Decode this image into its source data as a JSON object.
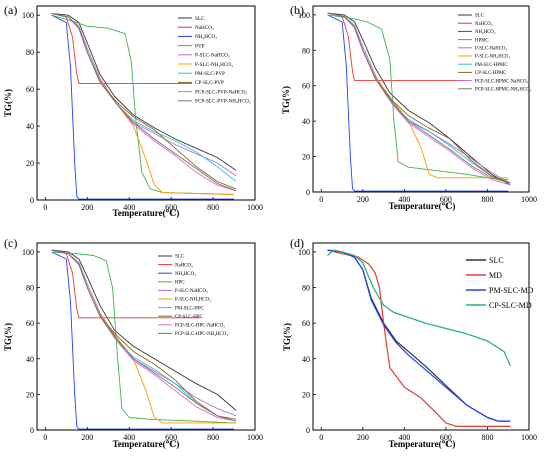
{
  "chart_data": [
    {
      "panel": "(a)",
      "type": "line",
      "xlabel": "Temperature(℃)",
      "ylabel": "TG(%)",
      "xlim": [
        -40,
        1000
      ],
      "ylim": [
        0,
        105
      ],
      "xticks": [
        0,
        200,
        400,
        600,
        800,
        1000
      ],
      "yticks": [
        0,
        20,
        40,
        60,
        80,
        100
      ],
      "legend": "top-right",
      "series": [
        {
          "name": "SLC",
          "color": "#333333",
          "x": [
            30,
            110,
            160,
            200,
            260,
            330,
            420,
            520,
            620,
            720,
            820,
            910
          ],
          "y": [
            101,
            100,
            96,
            85,
            68,
            56,
            46,
            39,
            33,
            28,
            23,
            16
          ]
        },
        {
          "name": "NaHCO₃",
          "color": "#e53935",
          "x": [
            30,
            100,
            130,
            150,
            160,
            700
          ],
          "y": [
            101,
            99,
            88,
            68,
            63,
            63
          ]
        },
        {
          "name": "NH₄HCO₃",
          "color": "#1e40ff",
          "x": [
            30,
            100,
            120,
            140,
            150,
            160,
            900
          ],
          "y": [
            100,
            96,
            72,
            20,
            2,
            0.5,
            0.5
          ]
        },
        {
          "name": "PVP",
          "color": "#3cb54a",
          "x": [
            30,
            150,
            200,
            300,
            380,
            410,
            430,
            460,
            500,
            560,
            900
          ],
          "y": [
            100,
            96,
            94,
            93,
            90,
            75,
            45,
            15,
            6,
            4,
            3
          ]
        },
        {
          "name": "P-SLC-NaHCO₃",
          "color": "#b36fd6",
          "x": [
            30,
            110,
            160,
            200,
            260,
            340,
            420,
            520,
            620,
            720,
            820,
            910
          ],
          "y": [
            101,
            99,
            94,
            82,
            66,
            52,
            42,
            36,
            30,
            25,
            20,
            13
          ]
        },
        {
          "name": "P-SLC-NH₄HCO₃",
          "color": "#ff9800",
          "x": [
            30,
            110,
            160,
            200,
            260,
            340,
            420,
            480,
            520,
            560,
            900
          ],
          "y": [
            101,
            99,
            93,
            80,
            65,
            52,
            40,
            22,
            8,
            4,
            3
          ]
        },
        {
          "name": "PM-SLC-PVP",
          "color": "#26c6da",
          "x": [
            30,
            110,
            160,
            200,
            260,
            340,
            420,
            520,
            620,
            720,
            820,
            910
          ],
          "y": [
            101,
            99,
            93,
            80,
            64,
            52,
            43,
            37,
            32,
            26,
            18,
            10
          ]
        },
        {
          "name": "CP-SLC-PVP",
          "color": "#8b6914",
          "x": [
            30,
            110,
            160,
            200,
            260,
            340,
            420,
            520,
            620,
            720,
            820,
            910
          ],
          "y": [
            101,
            99,
            93,
            80,
            64,
            53,
            45,
            38,
            28,
            18,
            10,
            6
          ]
        },
        {
          "name": "PCP-SLC-PVP-NaHCO₃",
          "color": "#d96bc9",
          "x": [
            30,
            110,
            160,
            200,
            260,
            340,
            420,
            520,
            620,
            720,
            820,
            910
          ],
          "y": [
            101,
            99,
            93,
            80,
            64,
            52,
            41,
            32,
            24,
            15,
            8,
            5
          ]
        },
        {
          "name": "PCP-SLC-PVP-NH₄HCO₃",
          "color": "#757575",
          "x": [
            30,
            110,
            160,
            200,
            260,
            340,
            420,
            520,
            620,
            720,
            820,
            910
          ],
          "y": [
            101,
            99,
            93,
            80,
            64,
            52,
            42,
            33,
            25,
            17,
            9,
            5
          ]
        }
      ]
    },
    {
      "panel": "(b)",
      "type": "line",
      "xlabel": "Temperature(℃)",
      "ylabel": "TG(%)",
      "xlim": [
        -40,
        1000
      ],
      "ylim": [
        0,
        105
      ],
      "xticks": [
        0,
        200,
        400,
        600,
        800,
        1000
      ],
      "yticks": [
        0,
        20,
        40,
        60,
        80,
        100
      ],
      "legend": "top-right",
      "series": [
        {
          "name": "SLC",
          "color": "#333333",
          "x": [
            30,
            110,
            160,
            200,
            260,
            330,
            420,
            520,
            620,
            720,
            820,
            910
          ],
          "y": [
            101,
            100,
            96,
            86,
            70,
            56,
            46,
            39,
            30,
            20,
            10,
            4
          ]
        },
        {
          "name": "NaHCO₃",
          "color": "#e53935",
          "x": [
            30,
            100,
            130,
            150,
            160,
            700
          ],
          "y": [
            101,
            99,
            88,
            68,
            63,
            63
          ]
        },
        {
          "name": "NH₄HCO₃",
          "color": "#1e40ff",
          "x": [
            30,
            100,
            120,
            140,
            150,
            160,
            900
          ],
          "y": [
            100,
            96,
            72,
            20,
            2,
            0.5,
            0.5
          ]
        },
        {
          "name": "HPMC",
          "color": "#3cb54a",
          "x": [
            30,
            150,
            220,
            290,
            330,
            350,
            370,
            420,
            700,
            800,
            900
          ],
          "y": [
            100,
            98,
            96,
            92,
            75,
            40,
            17,
            14,
            10,
            8,
            7
          ]
        },
        {
          "name": "P-SLC-NaHCO₃",
          "color": "#b36fd6",
          "x": [
            30,
            110,
            160,
            200,
            260,
            340,
            420,
            520,
            620,
            720,
            820,
            910
          ],
          "y": [
            101,
            99,
            94,
            82,
            66,
            50,
            40,
            34,
            27,
            19,
            11,
            5
          ]
        },
        {
          "name": "P-SLC-NH₄HCO₃",
          "color": "#ff9800",
          "x": [
            30,
            110,
            160,
            200,
            260,
            340,
            420,
            480,
            520,
            560,
            900
          ],
          "y": [
            101,
            99,
            93,
            80,
            65,
            52,
            40,
            25,
            10,
            8,
            8
          ]
        },
        {
          "name": "PM-SLC-HPMC",
          "color": "#26c6da",
          "x": [
            30,
            110,
            160,
            200,
            260,
            340,
            420,
            520,
            620,
            720,
            820,
            910
          ],
          "y": [
            101,
            99,
            93,
            80,
            64,
            50,
            41,
            34,
            26,
            17,
            9,
            5
          ]
        },
        {
          "name": "CP-SLC-HPMC",
          "color": "#8b6914",
          "x": [
            30,
            110,
            160,
            200,
            260,
            340,
            420,
            520,
            620,
            720,
            820,
            910
          ],
          "y": [
            101,
            99,
            93,
            80,
            64,
            52,
            43,
            36,
            30,
            18,
            9,
            5
          ]
        },
        {
          "name": "PCP-SLC-HPMC-NaHCO₃",
          "color": "#d96bc9",
          "x": [
            30,
            110,
            160,
            200,
            260,
            340,
            420,
            520,
            620,
            720,
            820,
            910
          ],
          "y": [
            101,
            99,
            93,
            80,
            64,
            50,
            39,
            31,
            23,
            14,
            7,
            4
          ]
        },
        {
          "name": "PCP-SLC-HPMC-NH₄HCO₃",
          "color": "#757575",
          "x": [
            30,
            110,
            160,
            200,
            260,
            340,
            420,
            520,
            620,
            720,
            820,
            910
          ],
          "y": [
            101,
            99,
            93,
            80,
            64,
            51,
            40,
            32,
            24,
            15,
            8,
            5
          ]
        }
      ]
    },
    {
      "panel": "(c)",
      "type": "line",
      "xlabel": "Temperature(℃)",
      "ylabel": "TG(%)",
      "xlim": [
        -40,
        1000
      ],
      "ylim": [
        0,
        105
      ],
      "xticks": [
        0,
        200,
        400,
        600,
        800,
        1000
      ],
      "yticks": [
        0,
        20,
        40,
        60,
        80,
        100
      ],
      "legend": "top-right",
      "series": [
        {
          "name": "SLC",
          "color": "#333333",
          "x": [
            30,
            110,
            160,
            200,
            260,
            330,
            420,
            520,
            620,
            720,
            820,
            910
          ],
          "y": [
            101,
            100,
            96,
            86,
            70,
            56,
            47,
            40,
            33,
            26,
            20,
            11
          ]
        },
        {
          "name": "NaHCO₃",
          "color": "#e53935",
          "x": [
            30,
            100,
            130,
            150,
            160,
            740
          ],
          "y": [
            101,
            99,
            88,
            68,
            63,
            63
          ]
        },
        {
          "name": "NH₄HCO₃",
          "color": "#1e40ff",
          "x": [
            30,
            100,
            120,
            140,
            150,
            160,
            900
          ],
          "y": [
            100,
            96,
            72,
            20,
            2,
            0.5,
            0.5
          ]
        },
        {
          "name": "HPC",
          "color": "#3cb54a",
          "x": [
            30,
            150,
            230,
            290,
            320,
            345,
            365,
            400,
            500,
            700,
            910
          ],
          "y": [
            100,
            99,
            98,
            95,
            80,
            40,
            12,
            7,
            6,
            5,
            4
          ]
        },
        {
          "name": "P-SLC-NaHCO₃",
          "color": "#b36fd6",
          "x": [
            30,
            110,
            160,
            200,
            260,
            340,
            420,
            520,
            620,
            720,
            820,
            910
          ],
          "y": [
            101,
            99,
            94,
            82,
            66,
            51,
            40,
            33,
            26,
            18,
            12,
            8
          ]
        },
        {
          "name": "P-SLC-NH₄HCO₃",
          "color": "#ff9800",
          "x": [
            30,
            110,
            160,
            200,
            260,
            340,
            420,
            480,
            520,
            560,
            900
          ],
          "y": [
            101,
            99,
            93,
            80,
            65,
            52,
            40,
            22,
            7,
            4,
            4
          ]
        },
        {
          "name": "PM-SLC-HPC",
          "color": "#26c6da",
          "x": [
            30,
            110,
            160,
            200,
            260,
            340,
            420,
            520,
            620,
            720,
            820,
            910
          ],
          "y": [
            101,
            99,
            93,
            80,
            64,
            50,
            41,
            34,
            26,
            15,
            8,
            5
          ]
        },
        {
          "name": "CP-SLC-HPC",
          "color": "#8b6914",
          "x": [
            30,
            110,
            160,
            200,
            260,
            340,
            420,
            520,
            620,
            720,
            820,
            910
          ],
          "y": [
            101,
            99,
            93,
            80,
            64,
            53,
            44,
            37,
            28,
            16,
            8,
            5
          ]
        },
        {
          "name": "PCP-SLC-HPC-NaHCO₃",
          "color": "#d96bc9",
          "x": [
            30,
            110,
            160,
            200,
            260,
            340,
            420,
            520,
            620,
            720,
            820,
            910
          ],
          "y": [
            101,
            99,
            93,
            80,
            64,
            50,
            39,
            31,
            22,
            13,
            7,
            5
          ]
        },
        {
          "name": "PCP-SLC-HPC-NH₄HCO₃",
          "color": "#757575",
          "x": [
            30,
            110,
            160,
            200,
            260,
            340,
            420,
            520,
            620,
            720,
            820,
            910
          ],
          "y": [
            101,
            99,
            93,
            80,
            64,
            51,
            40,
            32,
            24,
            15,
            8,
            6
          ]
        }
      ]
    },
    {
      "panel": "(d)",
      "type": "line",
      "xlabel": "Temperature(℃)",
      "ylabel": "TG(%)",
      "xlim": [
        -40,
        1000
      ],
      "ylim": [
        0,
        105
      ],
      "xticks": [
        0,
        200,
        400,
        600,
        800,
        1000
      ],
      "yticks": [
        0,
        20,
        40,
        60,
        80,
        100
      ],
      "legend": "top-right",
      "series": [
        {
          "name": "SLC",
          "color": "#333333",
          "x": [
            30,
            100,
            160,
            200,
            240,
            300,
            360,
            420,
            500,
            600,
            700,
            800,
            850,
            910
          ],
          "y": [
            101,
            100,
            97,
            90,
            74,
            60,
            50,
            44,
            36,
            25,
            14,
            7,
            5,
            5
          ]
        },
        {
          "name": "MD",
          "color": "#e53935",
          "x": [
            30,
            100,
            180,
            230,
            260,
            280,
            300,
            330,
            400,
            480,
            550,
            600,
            650,
            910
          ],
          "y": [
            101,
            99,
            97,
            93,
            88,
            80,
            60,
            35,
            24,
            18,
            10,
            4,
            2,
            2
          ]
        },
        {
          "name": "PM-SLC-MD",
          "color": "#1e40ff",
          "x": [
            30,
            100,
            160,
            200,
            240,
            300,
            360,
            420,
            500,
            600,
            700,
            800,
            850,
            910
          ],
          "y": [
            101,
            100,
            97,
            90,
            73,
            59,
            49,
            42,
            34,
            24,
            14,
            7,
            5,
            5
          ]
        },
        {
          "name": "CP-SLC-MD",
          "color": "#20b070",
          "x": [
            30,
            60,
            100,
            160,
            200,
            250,
            300,
            350,
            400,
            500,
            600,
            700,
            800,
            880,
            910
          ],
          "y": [
            98,
            101,
            100,
            98,
            94,
            80,
            70,
            66,
            64,
            60,
            57,
            54,
            50,
            44,
            36
          ]
        }
      ]
    }
  ]
}
